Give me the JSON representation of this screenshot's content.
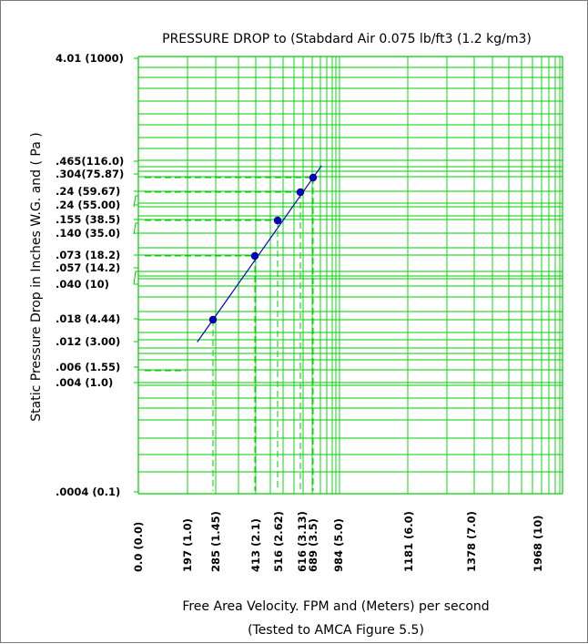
{
  "chart_data": {
    "type": "line",
    "title": "PRESSURE DROP to (Stabdard Air 0.075 lb/ft3 (1.2 kg/m3)",
    "ylabel": "Static Pressure Drop in Inches W.G. and ( Pa )",
    "xlabel": "Free Area Velocity. FPM and (Meters) per second",
    "xlabel2": "(Tested to AMCA Figure 5.5)",
    "x_tick_labels": [
      "0.0 (0.0)",
      "197 (1.0)",
      "285 (1.45)",
      "413 (2.1)",
      "516 (2.62)",
      "616 (3.13)",
      "689 (3.5)",
      "984 (5.0)",
      "1181 (6.0)",
      "1378 (7.0)",
      "1968 (10)"
    ],
    "y_tick_labels": [
      "4.01 (1000)",
      ".465(116.0)",
      ".304(75.87)",
      ".24  (59.67)",
      ".24  (55.00)",
      ".155  (38.5)",
      ".140  (35.0)",
      ".073  (18.2)",
      ".057  (14.2)",
      ".040    (10)",
      ".018  (4.44)",
      ".012  (3.00)",
      ".006  (1.55)",
      ".004    (1.0)",
      ".0004 (0.1)"
    ],
    "series": [
      {
        "x": [
          285,
          413,
          516,
          616,
          689
        ],
        "y": [
          0.018,
          0.073,
          0.155,
          0.24,
          0.304
        ]
      }
    ],
    "grid": true,
    "colors": {
      "grid": "#00cc00",
      "line": "#0000cc",
      "marker": "#0000cc",
      "guide": "#00cc00"
    }
  }
}
